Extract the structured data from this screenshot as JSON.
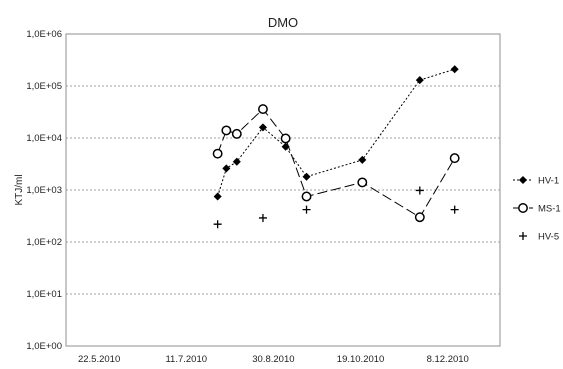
{
  "chart_data": {
    "type": "line",
    "title": "DMO",
    "xlabel": "",
    "ylabel": "KTJ/ml",
    "yscale": "log",
    "ylim": [
      1,
      1000000
    ],
    "xlim": [
      "2010-05-03",
      "2011-01-07"
    ],
    "grid": "horizontal dashed",
    "legend_position": "right",
    "y_ticks": [
      {
        "value": 1,
        "label": "1,0E+00"
      },
      {
        "value": 10,
        "label": "1,0E+01"
      },
      {
        "value": 100,
        "label": "1,0E+02"
      },
      {
        "value": 1000,
        "label": "1,0E+03"
      },
      {
        "value": 10000,
        "label": "1,0E+04"
      },
      {
        "value": 100000,
        "label": "1,0E+05"
      },
      {
        "value": 1000000,
        "label": "1,0E+06"
      }
    ],
    "x_ticks": [
      {
        "date": "2010-05-22",
        "label": "22.5.2010"
      },
      {
        "date": "2010-07-11",
        "label": "11.7.2010"
      },
      {
        "date": "2010-08-30",
        "label": "30.8.2010"
      },
      {
        "date": "2010-10-19",
        "label": "19.10.2010"
      },
      {
        "date": "2010-12-08",
        "label": "8.12.2010"
      }
    ],
    "series": [
      {
        "name": "HV-1",
        "color": "#000000",
        "dash": "2,2",
        "marker": "diamond",
        "points": [
          {
            "x": "2010-07-29",
            "y": 750
          },
          {
            "x": "2010-08-03",
            "y": 2600
          },
          {
            "x": "2010-08-09",
            "y": 3500
          },
          {
            "x": "2010-08-24",
            "y": 16000
          },
          {
            "x": "2010-09-06",
            "y": 6800
          },
          {
            "x": "2010-09-18",
            "y": 1800
          },
          {
            "x": "2010-10-20",
            "y": 3800
          },
          {
            "x": "2010-11-22",
            "y": 130000
          },
          {
            "x": "2010-12-12",
            "y": 210000
          }
        ]
      },
      {
        "name": "MS-1",
        "color": "#000000",
        "dash": "10,4",
        "marker": "circle",
        "points": [
          {
            "x": "2010-07-29",
            "y": 5000
          },
          {
            "x": "2010-08-03",
            "y": 14000
          },
          {
            "x": "2010-08-09",
            "y": 12000
          },
          {
            "x": "2010-08-24",
            "y": 36000
          },
          {
            "x": "2010-09-06",
            "y": 9800
          },
          {
            "x": "2010-09-18",
            "y": 750
          },
          {
            "x": "2010-10-20",
            "y": 1400
          },
          {
            "x": "2010-11-22",
            "y": 300
          },
          {
            "x": "2010-12-12",
            "y": 4100
          }
        ]
      },
      {
        "name": "HV-5",
        "color": "#000000",
        "dash": "none",
        "marker": "plus",
        "points": [
          {
            "x": "2010-07-29",
            "y": 220
          },
          {
            "x": "2010-08-24",
            "y": 290
          },
          {
            "x": "2010-09-18",
            "y": 420
          },
          {
            "x": "2010-11-22",
            "y": 980
          },
          {
            "x": "2010-12-12",
            "y": 420
          }
        ]
      }
    ]
  }
}
